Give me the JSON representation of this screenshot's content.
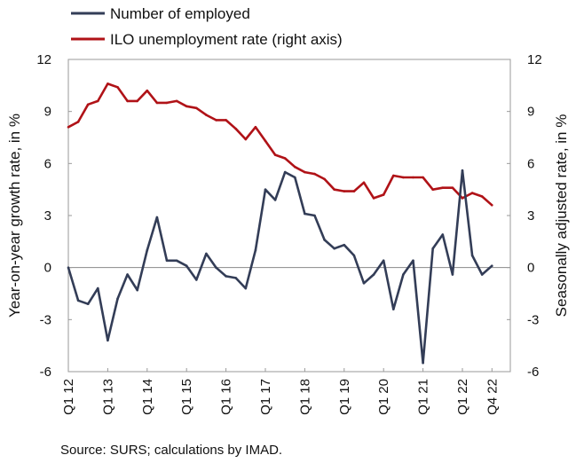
{
  "chart_data": {
    "type": "line",
    "source": "Source: SURS; calculations by IMAD.",
    "left_axis": {
      "label": "Year-on-year growth rate, in %",
      "range": [
        -6,
        12
      ],
      "ticks": [
        "12",
        "9",
        "6",
        "3",
        "0",
        "-3",
        "-6"
      ]
    },
    "right_axis": {
      "label": "Seasonally adjusted rate, in %",
      "range": [
        -6,
        12
      ],
      "ticks": [
        "12",
        "9",
        "6",
        "3",
        "0",
        "-3",
        "-6"
      ]
    },
    "x_labels": [
      "Q1 12",
      "Q1 13",
      "Q1 14",
      "Q1 15",
      "Q1 16",
      "Q1 17",
      "Q1 18",
      "Q1 19",
      "Q1 20",
      "Q1 21",
      "Q1 22",
      "Q4 22"
    ],
    "x": [
      "Q1 12",
      "Q2 12",
      "Q3 12",
      "Q4 12",
      "Q1 13",
      "Q2 13",
      "Q3 13",
      "Q4 13",
      "Q1 14",
      "Q2 14",
      "Q3 14",
      "Q4 14",
      "Q1 15",
      "Q2 15",
      "Q3 15",
      "Q4 15",
      "Q1 16",
      "Q2 16",
      "Q3 16",
      "Q4 16",
      "Q1 17",
      "Q2 17",
      "Q3 17",
      "Q4 17",
      "Q1 18",
      "Q2 18",
      "Q3 18",
      "Q4 18",
      "Q1 19",
      "Q2 19",
      "Q3 19",
      "Q4 19",
      "Q1 20",
      "Q2 20",
      "Q3 20",
      "Q4 20",
      "Q1 21",
      "Q2 21",
      "Q3 21",
      "Q4 21",
      "Q1 22",
      "Q2 22",
      "Q3 22",
      "Q4 22"
    ],
    "series": [
      {
        "name": "Number of employed",
        "axis": "left",
        "color": "#333d57",
        "values": [
          0,
          -1.9,
          -2.1,
          -1.2,
          -4.2,
          -1.8,
          -0.4,
          -1.3,
          1.0,
          2.9,
          0.4,
          0.4,
          0.1,
          -0.7,
          0.8,
          0.0,
          -0.5,
          -0.6,
          -1.2,
          1.0,
          4.5,
          3.9,
          5.5,
          5.2,
          3.1,
          3.0,
          1.6,
          1.1,
          1.3,
          0.7,
          -0.9,
          -0.4,
          0.4,
          -2.4,
          -0.4,
          0.4,
          -5.5,
          1.1,
          1.9,
          -0.4,
          5.6,
          0.7,
          -0.4,
          0.1
        ]
      },
      {
        "name": "ILO unemployment rate (right axis)",
        "axis": "right",
        "color": "#b01217",
        "values": [
          8.1,
          8.4,
          9.4,
          9.6,
          10.6,
          10.4,
          9.6,
          9.6,
          10.2,
          9.5,
          9.5,
          9.6,
          9.3,
          9.2,
          8.8,
          8.5,
          8.5,
          8.0,
          7.4,
          8.1,
          7.3,
          6.5,
          6.3,
          5.8,
          5.5,
          5.4,
          5.1,
          4.5,
          4.4,
          4.4,
          4.9,
          4.0,
          4.2,
          5.3,
          5.2,
          5.2,
          5.2,
          4.5,
          4.6,
          4.6,
          4.0,
          4.3,
          4.1,
          3.6
        ]
      }
    ],
    "zero_line": true,
    "grid": false,
    "legend_position": "top-left"
  }
}
